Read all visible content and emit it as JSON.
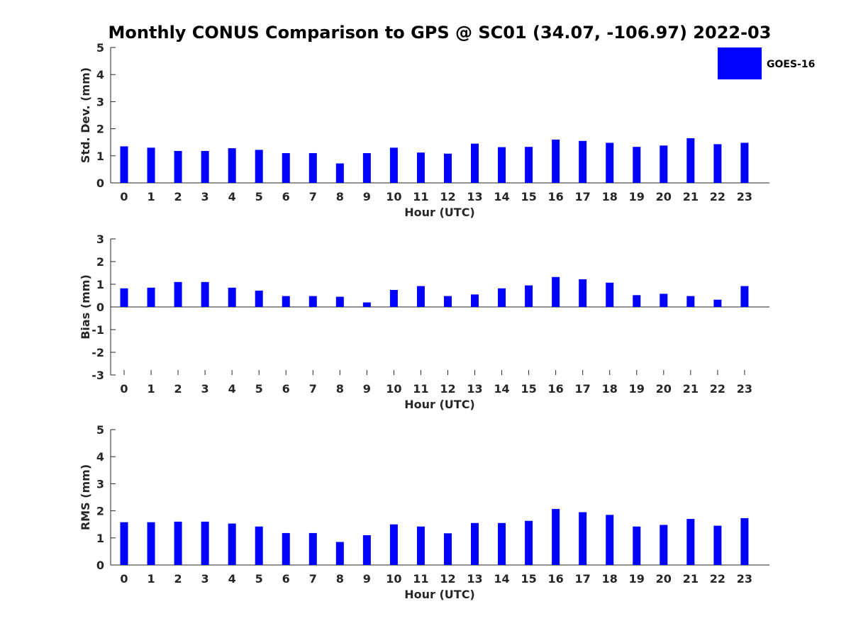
{
  "title": "Monthly CONUS Comparison to GPS @ SC01 (34.07, -106.97) 2022-03",
  "legend": {
    "label": "GOES-16",
    "color": "#0000ff",
    "placement": "top-right"
  },
  "chart_data": [
    {
      "type": "bar",
      "title": "Monthly CONUS Comparison to GPS @ SC01 (34.07, -106.97) 2022-03",
      "xlabel": "Hour (UTC)",
      "ylabel": "Std. Dev. (mm)",
      "ylim": [
        0,
        5
      ],
      "yticks": [
        0,
        1,
        2,
        3,
        4,
        5
      ],
      "categories": [
        "0",
        "1",
        "2",
        "3",
        "4",
        "5",
        "6",
        "7",
        "8",
        "9",
        "10",
        "11",
        "12",
        "13",
        "14",
        "15",
        "16",
        "17",
        "18",
        "19",
        "20",
        "21",
        "22",
        "23"
      ],
      "series": [
        {
          "name": "GOES-16",
          "color": "#0000ff",
          "values": [
            1.35,
            1.3,
            1.18,
            1.18,
            1.28,
            1.22,
            1.1,
            1.1,
            0.72,
            1.1,
            1.3,
            1.12,
            1.08,
            1.45,
            1.32,
            1.33,
            1.6,
            1.55,
            1.48,
            1.33,
            1.38,
            1.65,
            1.43,
            1.48
          ]
        }
      ]
    },
    {
      "type": "bar",
      "xlabel": "Hour (UTC)",
      "ylabel": "Bias (mm)",
      "ylim": [
        -3,
        3
      ],
      "yticks": [
        -3,
        -2,
        -1,
        0,
        1,
        2,
        3
      ],
      "categories": [
        "0",
        "1",
        "2",
        "3",
        "4",
        "5",
        "6",
        "7",
        "8",
        "9",
        "10",
        "11",
        "12",
        "13",
        "14",
        "15",
        "16",
        "17",
        "18",
        "19",
        "20",
        "21",
        "22",
        "23"
      ],
      "series": [
        {
          "name": "GOES-16",
          "color": "#0000ff",
          "values": [
            0.82,
            0.85,
            1.1,
            1.1,
            0.85,
            0.72,
            0.48,
            0.48,
            0.45,
            0.2,
            0.75,
            0.92,
            0.48,
            0.55,
            0.82,
            0.95,
            1.32,
            1.22,
            1.07,
            0.52,
            0.58,
            0.48,
            0.32,
            0.92
          ]
        }
      ]
    },
    {
      "type": "bar",
      "xlabel": "Hour (UTC)",
      "ylabel": "RMS (mm)",
      "ylim": [
        0,
        5
      ],
      "yticks": [
        0,
        1,
        2,
        3,
        4,
        5
      ],
      "categories": [
        "0",
        "1",
        "2",
        "3",
        "4",
        "5",
        "6",
        "7",
        "8",
        "9",
        "10",
        "11",
        "12",
        "13",
        "14",
        "15",
        "16",
        "17",
        "18",
        "19",
        "20",
        "21",
        "22",
        "23"
      ],
      "series": [
        {
          "name": "GOES-16",
          "color": "#0000ff",
          "values": [
            1.58,
            1.58,
            1.6,
            1.6,
            1.53,
            1.42,
            1.18,
            1.18,
            0.85,
            1.1,
            1.5,
            1.42,
            1.17,
            1.55,
            1.55,
            1.63,
            2.07,
            1.95,
            1.85,
            1.42,
            1.48,
            1.7,
            1.45,
            1.73
          ]
        }
      ]
    }
  ]
}
